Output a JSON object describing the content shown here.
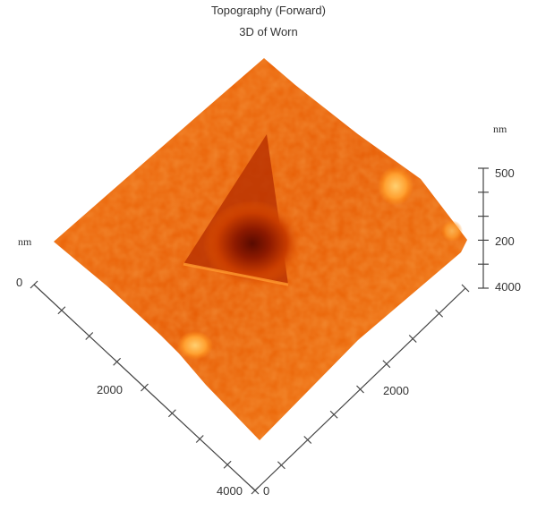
{
  "chart_data": {
    "type": "surface3d",
    "title": "Topography (Forward)",
    "subtitle": "3D of Worn",
    "x_axis": {
      "unit": "nm",
      "tick_labels": [
        "0",
        "2000",
        "4000"
      ],
      "range": [
        0,
        4000
      ]
    },
    "y_axis": {
      "tick_labels": [
        "0",
        "2000",
        "4000"
      ],
      "range": [
        0,
        4000
      ]
    },
    "z_axis": {
      "unit": "nm",
      "tick_labels": [
        "500",
        "200"
      ]
    },
    "colormap": [
      "#5a0a00",
      "#b42a00",
      "#e85a00",
      "#ff8a10",
      "#ffc040"
    ],
    "features": [
      "triangular indentation pit at center",
      "two bright bumps near edges"
    ]
  }
}
